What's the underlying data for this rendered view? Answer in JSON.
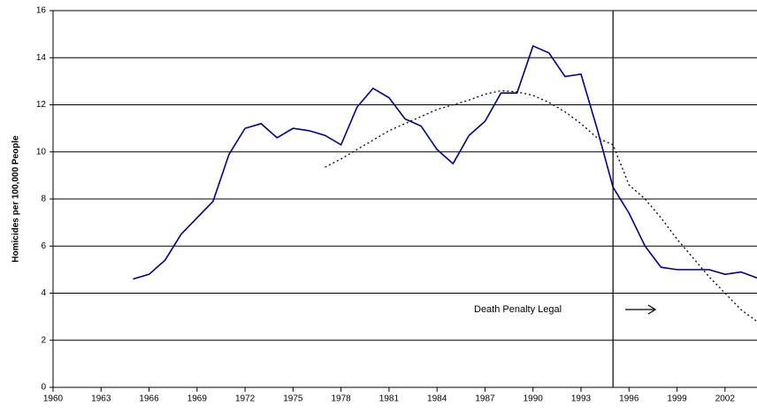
{
  "chart_data": {
    "type": "line",
    "y_label": "Homicides per 100,000 People",
    "annotation": "Death Penalty Legal",
    "vline_x": 1995,
    "x": [
      1965,
      1966,
      1967,
      1968,
      1969,
      1970,
      1971,
      1972,
      1973,
      1974,
      1975,
      1976,
      1977,
      1978,
      1979,
      1980,
      1981,
      1982,
      1983,
      1984,
      1985,
      1986,
      1987,
      1988,
      1989,
      1990,
      1991,
      1992,
      1993,
      1994,
      1995,
      1996,
      1997,
      1998,
      1999,
      2000,
      2001,
      2002,
      2003,
      2004
    ],
    "series": [
      {
        "color": "#000080",
        "style": "solid",
        "values": [
          4.6,
          4.8,
          5.4,
          6.5,
          7.2,
          7.9,
          9.9,
          11.0,
          11.2,
          10.6,
          11.0,
          10.9,
          10.7,
          10.3,
          11.9,
          12.7,
          12.3,
          11.4,
          11.1,
          10.1,
          9.5,
          10.7,
          11.3,
          12.5,
          12.5,
          14.5,
          14.2,
          13.2,
          13.3,
          11.0,
          8.5,
          7.4,
          6.0,
          5.1,
          5.0,
          5.0,
          5.0,
          4.8,
          4.9,
          4.65
        ]
      },
      {
        "color": "#000000",
        "style": "dotted",
        "values": [
          null,
          null,
          null,
          null,
          null,
          null,
          null,
          null,
          null,
          null,
          null,
          null,
          9.35,
          9.7,
          10.1,
          10.5,
          10.9,
          11.2,
          11.5,
          11.8,
          12.0,
          12.2,
          12.45,
          12.6,
          12.55,
          12.4,
          12.1,
          11.7,
          11.2,
          10.6,
          10.3,
          8.6,
          8.0,
          7.2,
          6.3,
          5.5,
          4.7,
          4.0,
          3.3,
          2.8
        ]
      }
    ],
    "xlim": [
      1960,
      2004
    ],
    "xticks": [
      1960,
      1963,
      1966,
      1969,
      1972,
      1975,
      1978,
      1981,
      1984,
      1987,
      1990,
      1993,
      1996,
      1999,
      2002
    ],
    "ylim": [
      0,
      16
    ],
    "yticks": [
      0,
      2,
      4,
      6,
      8,
      10,
      12,
      14,
      16
    ],
    "grid": true
  }
}
